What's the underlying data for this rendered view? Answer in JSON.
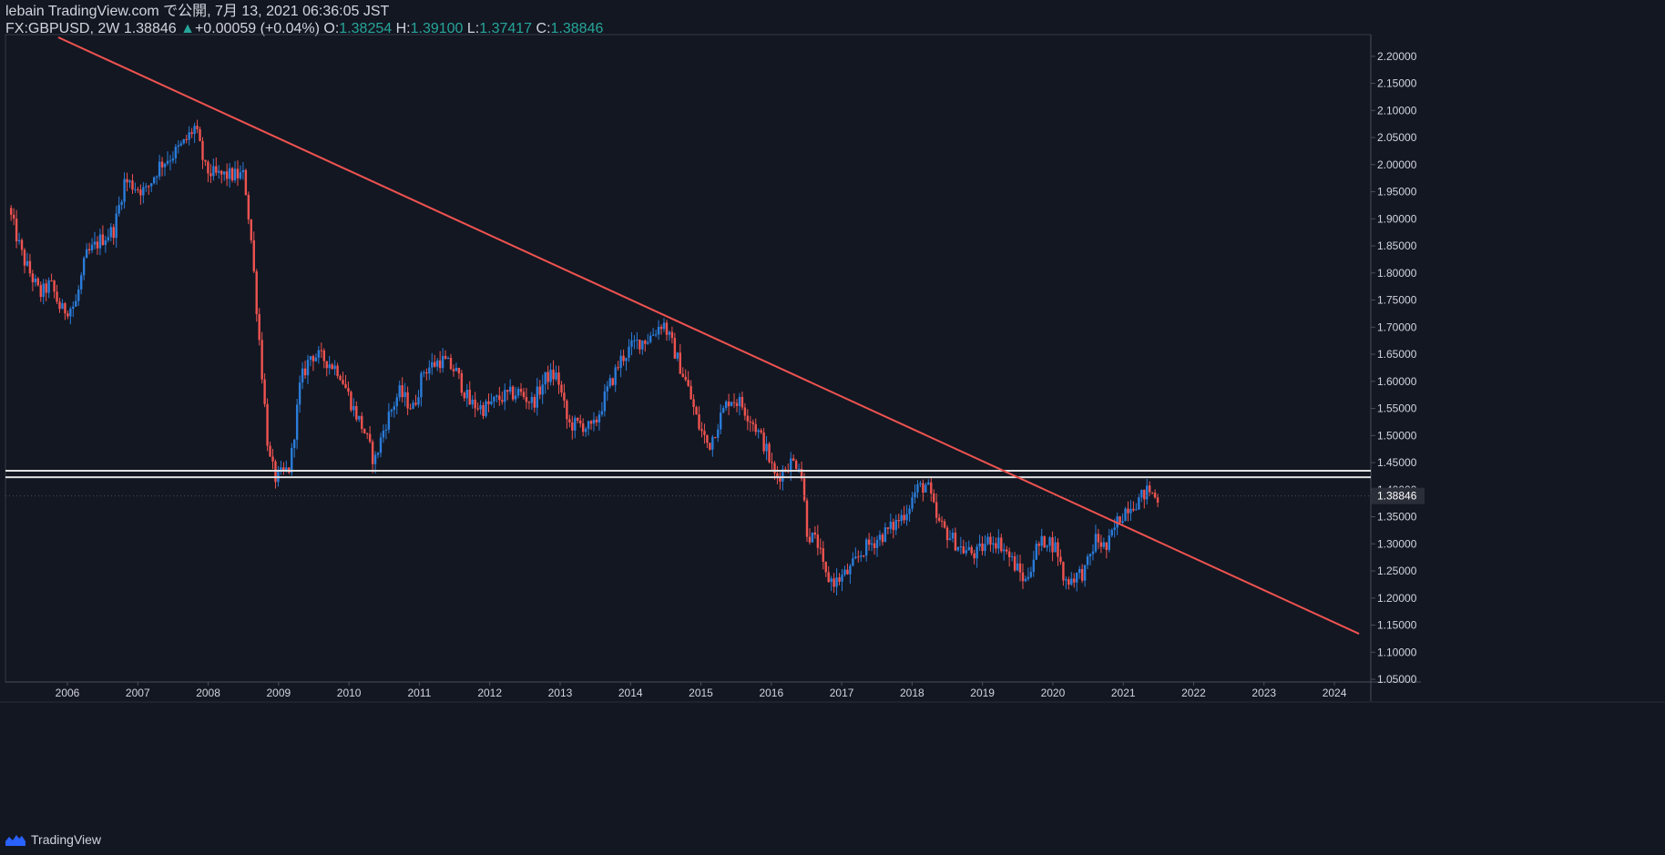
{
  "header": {
    "line1": "lebain TradingView.com で公開, 7月 13, 2021 06:36:05 JST",
    "symbol": "FX:GBPUSD, 2W",
    "last": "1.38846",
    "change": "+0.00059 (+0.04%)",
    "open_label": "O:",
    "open": "1.38254",
    "high_label": "H:",
    "high": "1.39100",
    "low_label": "L:",
    "low": "1.37417",
    "close_label": "C:",
    "close": "1.38846"
  },
  "footer": {
    "brand": "TradingView"
  },
  "colors": {
    "background": "#131722",
    "up": "#2a7cd9",
    "down": "#ef5350",
    "trendline": "#ef5350",
    "hline": "#e0e0e0",
    "axis_text": "#d1d4dc",
    "price_label_bg": "#2a2e39"
  },
  "chart_data": {
    "type": "candlestick",
    "title": "",
    "xlabel": "",
    "ylabel": "",
    "x_range": [
      2005.2,
      2024.35
    ],
    "ylim": [
      1.045,
      2.24
    ],
    "x_ticks": [
      "2006",
      "2007",
      "2008",
      "2009",
      "2010",
      "2011",
      "2012",
      "2013",
      "2014",
      "2015",
      "2016",
      "2017",
      "2018",
      "2019",
      "2020",
      "2021",
      "2022",
      "2023",
      "2024"
    ],
    "y_ticks": [
      "1.05000",
      "1.10000",
      "1.15000",
      "1.20000",
      "1.25000",
      "1.30000",
      "1.35000",
      "1.40000",
      "1.45000",
      "1.50000",
      "1.55000",
      "1.60000",
      "1.65000",
      "1.70000",
      "1.75000",
      "1.80000",
      "1.85000",
      "1.90000",
      "1.95000",
      "2.00000",
      "2.05000",
      "2.10000",
      "2.15000",
      "2.20000"
    ],
    "last_price_label": "1.38846",
    "last_price": 1.38846,
    "grid": false,
    "legend": "none",
    "trendline": {
      "from": [
        2005.87,
        2.235
      ],
      "to": [
        2024.35,
        1.134
      ]
    },
    "horizontal_lines": [
      1.435,
      1.423
    ],
    "price_path": [
      [
        2005.2,
        1.92
      ],
      [
        2005.4,
        1.83
      ],
      [
        2005.65,
        1.76
      ],
      [
        2005.8,
        1.78
      ],
      [
        2005.95,
        1.73
      ],
      [
        2006.15,
        1.74
      ],
      [
        2006.3,
        1.83
      ],
      [
        2006.5,
        1.86
      ],
      [
        2006.7,
        1.88
      ],
      [
        2006.85,
        1.97
      ],
      [
        2007.0,
        1.96
      ],
      [
        2007.15,
        1.95
      ],
      [
        2007.35,
        2.0
      ],
      [
        2007.55,
        2.02
      ],
      [
        2007.7,
        2.04
      ],
      [
        2007.85,
        2.07
      ],
      [
        2008.0,
        1.99
      ],
      [
        2008.15,
        1.98
      ],
      [
        2008.35,
        1.98
      ],
      [
        2008.55,
        1.98
      ],
      [
        2008.65,
        1.86
      ],
      [
        2008.8,
        1.62
      ],
      [
        2008.9,
        1.46
      ],
      [
        2009.0,
        1.42
      ],
      [
        2009.2,
        1.44
      ],
      [
        2009.35,
        1.6
      ],
      [
        2009.5,
        1.65
      ],
      [
        2009.7,
        1.64
      ],
      [
        2009.9,
        1.62
      ],
      [
        2010.1,
        1.55
      ],
      [
        2010.25,
        1.51
      ],
      [
        2010.4,
        1.45
      ],
      [
        2010.55,
        1.52
      ],
      [
        2010.75,
        1.58
      ],
      [
        2010.95,
        1.55
      ],
      [
        2011.1,
        1.62
      ],
      [
        2011.35,
        1.64
      ],
      [
        2011.55,
        1.62
      ],
      [
        2011.75,
        1.56
      ],
      [
        2011.95,
        1.55
      ],
      [
        2012.2,
        1.57
      ],
      [
        2012.45,
        1.58
      ],
      [
        2012.65,
        1.56
      ],
      [
        2012.85,
        1.61
      ],
      [
        2013.0,
        1.61
      ],
      [
        2013.15,
        1.52
      ],
      [
        2013.35,
        1.52
      ],
      [
        2013.5,
        1.51
      ],
      [
        2013.7,
        1.58
      ],
      [
        2013.9,
        1.64
      ],
      [
        2014.1,
        1.67
      ],
      [
        2014.3,
        1.68
      ],
      [
        2014.5,
        1.71
      ],
      [
        2014.65,
        1.66
      ],
      [
        2014.85,
        1.59
      ],
      [
        2015.0,
        1.52
      ],
      [
        2015.15,
        1.48
      ],
      [
        2015.3,
        1.53
      ],
      [
        2015.45,
        1.57
      ],
      [
        2015.6,
        1.56
      ],
      [
        2015.8,
        1.52
      ],
      [
        2015.95,
        1.48
      ],
      [
        2016.1,
        1.42
      ],
      [
        2016.3,
        1.45
      ],
      [
        2016.45,
        1.45
      ],
      [
        2016.55,
        1.32
      ],
      [
        2016.7,
        1.3
      ],
      [
        2016.8,
        1.24
      ],
      [
        2016.95,
        1.23
      ],
      [
        2017.15,
        1.25
      ],
      [
        2017.35,
        1.29
      ],
      [
        2017.55,
        1.31
      ],
      [
        2017.75,
        1.33
      ],
      [
        2017.95,
        1.36
      ],
      [
        2018.1,
        1.4
      ],
      [
        2018.25,
        1.41
      ],
      [
        2018.4,
        1.34
      ],
      [
        2018.6,
        1.31
      ],
      [
        2018.75,
        1.29
      ],
      [
        2018.95,
        1.28
      ],
      [
        2019.15,
        1.31
      ],
      [
        2019.3,
        1.3
      ],
      [
        2019.5,
        1.26
      ],
      [
        2019.65,
        1.23
      ],
      [
        2019.8,
        1.29
      ],
      [
        2019.95,
        1.31
      ],
      [
        2020.1,
        1.29
      ],
      [
        2020.2,
        1.23
      ],
      [
        2020.35,
        1.24
      ],
      [
        2020.5,
        1.25
      ],
      [
        2020.65,
        1.31
      ],
      [
        2020.8,
        1.29
      ],
      [
        2020.95,
        1.34
      ],
      [
        2021.1,
        1.37
      ],
      [
        2021.25,
        1.38
      ],
      [
        2021.4,
        1.4
      ],
      [
        2021.5,
        1.385
      ]
    ]
  }
}
